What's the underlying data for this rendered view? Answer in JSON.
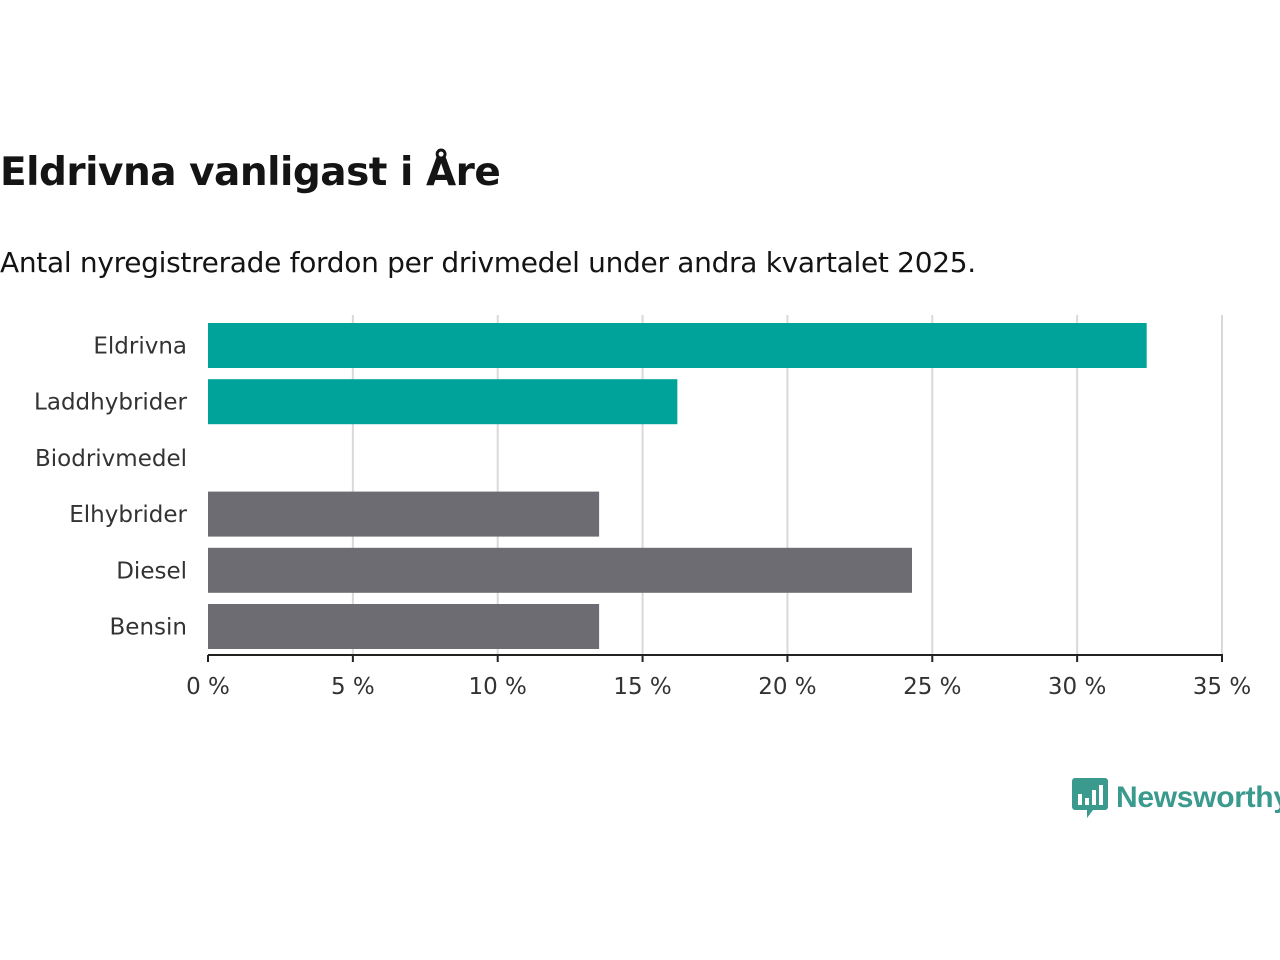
{
  "title": "Eldrivna vanligast i Åre",
  "subtitle": "Antal nyregistrerade fordon per drivmedel under andra kvartalet 2025.",
  "brand": {
    "name": "Newsworthy",
    "icon": "newsworthy-logo-icon"
  },
  "colors": {
    "highlight": "#00a39a",
    "other": "#6d6c72",
    "grid": "#d9d9d9",
    "axis": "#222222"
  },
  "chart_data": {
    "type": "bar",
    "orientation": "horizontal",
    "title": "Eldrivna vanligast i Åre",
    "subtitle": "Antal nyregistrerade fordon per drivmedel under andra kvartalet 2025.",
    "categories": [
      "Eldrivna",
      "Laddhybrider",
      "Biodrivmedel",
      "Elhybrider",
      "Diesel",
      "Bensin"
    ],
    "values": [
      32.4,
      16.2,
      0,
      13.5,
      24.3,
      13.5
    ],
    "highlight": [
      true,
      true,
      false,
      false,
      false,
      false
    ],
    "unit": "%",
    "xlim": [
      0,
      35
    ],
    "ticks": [
      0,
      5,
      10,
      15,
      20,
      25,
      30,
      35
    ],
    "tick_labels": [
      "0 %",
      "5 %",
      "10 %",
      "15 %",
      "20 %",
      "25 %",
      "30 %",
      "35 %"
    ],
    "grid": true,
    "legend": "none"
  }
}
